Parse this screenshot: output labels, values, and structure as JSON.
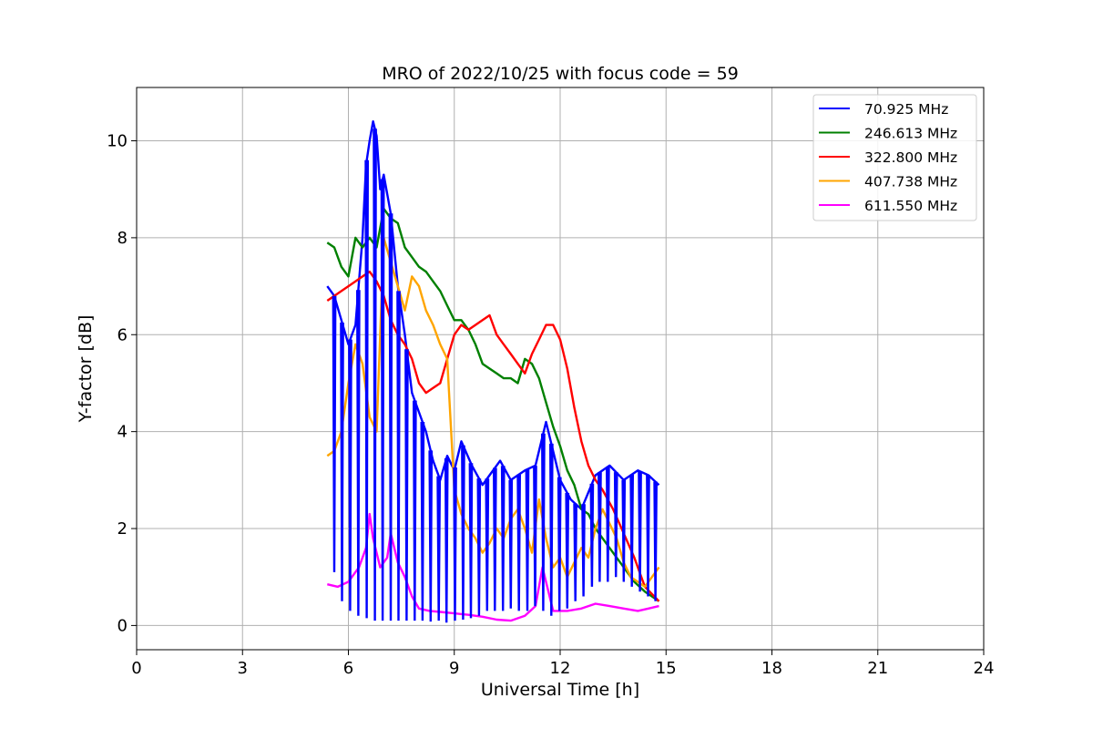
{
  "chart_data": {
    "type": "line",
    "title": "MRO of 2022/10/25 with focus code = 59",
    "xlabel": "Universal Time [h]",
    "ylabel": "Y-factor [dB]",
    "xlim": [
      0,
      24
    ],
    "ylim": [
      -0.5,
      11.1
    ],
    "xticks": [
      0,
      3,
      6,
      9,
      12,
      15,
      18,
      21,
      24
    ],
    "yticks": [
      0,
      2,
      4,
      6,
      8,
      10
    ],
    "grid": true,
    "legend_position": "top-right",
    "series": [
      {
        "name": " 70.925 MHz",
        "color": "#0000ff",
        "x": [
          5.4,
          5.6,
          5.8,
          6.0,
          6.2,
          6.4,
          6.5,
          6.6,
          6.7,
          6.8,
          6.9,
          7.0,
          7.2,
          7.4,
          7.6,
          7.8,
          8.0,
          8.2,
          8.4,
          8.6,
          8.8,
          9.0,
          9.2,
          9.5,
          9.8,
          10.0,
          10.3,
          10.6,
          11.0,
          11.3,
          11.6,
          12.0,
          12.3,
          12.6,
          13.0,
          13.4,
          13.8,
          14.2,
          14.5,
          14.8
        ],
        "y": [
          7.0,
          6.8,
          6.3,
          5.8,
          6.2,
          8.0,
          9.5,
          10.0,
          10.4,
          10.1,
          9.0,
          9.3,
          8.5,
          7.0,
          6.0,
          4.8,
          4.4,
          4.0,
          3.4,
          3.0,
          3.5,
          3.2,
          3.8,
          3.3,
          2.9,
          3.1,
          3.4,
          3.0,
          3.2,
          3.3,
          4.2,
          3.0,
          2.6,
          2.4,
          3.1,
          3.3,
          3.0,
          3.2,
          3.1,
          2.9
        ]
      },
      {
        "name": "246.613 MHz",
        "color": "#008000",
        "x": [
          5.4,
          5.6,
          5.8,
          6.0,
          6.2,
          6.4,
          6.6,
          6.8,
          7.0,
          7.2,
          7.4,
          7.6,
          7.8,
          8.0,
          8.2,
          8.4,
          8.6,
          8.8,
          9.0,
          9.2,
          9.4,
          9.6,
          9.8,
          10.0,
          10.2,
          10.4,
          10.6,
          10.8,
          11.0,
          11.2,
          11.4,
          11.6,
          11.8,
          12.0,
          12.2,
          12.4,
          12.6,
          12.8,
          13.0,
          13.2,
          13.5,
          13.8,
          14.1,
          14.4,
          14.8
        ],
        "y": [
          7.9,
          7.8,
          7.4,
          7.2,
          8.0,
          7.8,
          8.0,
          7.8,
          8.6,
          8.4,
          8.3,
          7.8,
          7.6,
          7.4,
          7.3,
          7.1,
          6.9,
          6.6,
          6.3,
          6.3,
          6.1,
          5.8,
          5.4,
          5.3,
          5.2,
          5.1,
          5.1,
          5.0,
          5.5,
          5.4,
          5.1,
          4.6,
          4.1,
          3.7,
          3.2,
          2.9,
          2.4,
          2.3,
          2.0,
          1.8,
          1.5,
          1.2,
          0.9,
          0.7,
          0.5
        ]
      },
      {
        "name": "322.800 MHz",
        "color": "#ff0000",
        "x": [
          5.4,
          5.6,
          5.8,
          6.0,
          6.2,
          6.4,
          6.6,
          6.8,
          7.0,
          7.2,
          7.4,
          7.6,
          7.8,
          8.0,
          8.2,
          8.4,
          8.6,
          8.8,
          9.0,
          9.2,
          9.4,
          9.6,
          9.8,
          10.0,
          10.2,
          10.4,
          10.6,
          10.8,
          11.0,
          11.2,
          11.4,
          11.6,
          11.8,
          12.0,
          12.2,
          12.4,
          12.6,
          12.8,
          13.0,
          13.2,
          13.5,
          13.8,
          14.1,
          14.4,
          14.8
        ],
        "y": [
          6.7,
          6.8,
          6.9,
          7.0,
          7.1,
          7.2,
          7.3,
          7.1,
          6.8,
          6.3,
          6.0,
          5.8,
          5.5,
          5.0,
          4.8,
          4.9,
          5.0,
          5.5,
          6.0,
          6.2,
          6.1,
          6.2,
          6.3,
          6.4,
          6.0,
          5.8,
          5.6,
          5.4,
          5.2,
          5.6,
          5.9,
          6.2,
          6.2,
          5.9,
          5.3,
          4.5,
          3.8,
          3.3,
          3.0,
          2.8,
          2.4,
          1.9,
          1.4,
          0.8,
          0.5
        ]
      },
      {
        "name": "407.738 MHz",
        "color": "#ffa500",
        "x": [
          5.4,
          5.6,
          5.8,
          6.0,
          6.2,
          6.4,
          6.6,
          6.8,
          7.0,
          7.2,
          7.4,
          7.6,
          7.8,
          8.0,
          8.2,
          8.4,
          8.6,
          8.8,
          9.0,
          9.2,
          9.4,
          9.6,
          9.8,
          10.0,
          10.2,
          10.4,
          10.6,
          10.8,
          11.0,
          11.2,
          11.4,
          11.6,
          11.8,
          12.0,
          12.2,
          12.4,
          12.6,
          12.8,
          13.0,
          13.2,
          13.4,
          13.6,
          13.8,
          14.0,
          14.2,
          14.4,
          14.6,
          14.8
        ],
        "y": [
          3.5,
          3.6,
          4.0,
          5.0,
          5.8,
          5.4,
          4.3,
          4.0,
          8.0,
          7.5,
          7.0,
          6.5,
          7.2,
          7.0,
          6.5,
          6.2,
          5.8,
          5.5,
          2.8,
          2.3,
          2.0,
          1.8,
          1.5,
          1.7,
          2.0,
          1.8,
          2.2,
          2.4,
          2.0,
          1.5,
          2.6,
          1.8,
          1.2,
          1.4,
          1.0,
          1.3,
          1.6,
          1.4,
          2.0,
          2.4,
          2.1,
          1.8,
          1.3,
          1.0,
          0.9,
          0.8,
          1.0,
          1.2
        ]
      },
      {
        "name": "611.550 MHz",
        "color": "#ff00ff",
        "x": [
          5.4,
          5.7,
          6.0,
          6.3,
          6.5,
          6.6,
          6.7,
          6.9,
          7.1,
          7.2,
          7.4,
          7.6,
          7.8,
          8.0,
          8.3,
          8.6,
          9.0,
          9.4,
          9.8,
          10.2,
          10.6,
          11.0,
          11.3,
          11.5,
          11.8,
          12.2,
          12.6,
          13.0,
          13.4,
          13.8,
          14.2,
          14.5,
          14.8
        ],
        "y": [
          0.85,
          0.8,
          0.9,
          1.2,
          1.6,
          2.3,
          1.8,
          1.2,
          1.4,
          1.9,
          1.3,
          1.0,
          0.6,
          0.35,
          0.3,
          0.28,
          0.25,
          0.22,
          0.18,
          0.12,
          0.1,
          0.2,
          0.4,
          1.2,
          0.3,
          0.3,
          0.35,
          0.45,
          0.4,
          0.35,
          0.3,
          0.35,
          0.4
        ]
      }
    ],
    "spike_series": [
      {
        "name": " 70.925 MHz",
        "color": "#0000ff",
        "x": [
          5.6,
          5.82,
          6.05,
          6.28,
          6.52,
          6.75,
          6.97,
          7.2,
          7.42,
          7.65,
          7.88,
          8.1,
          8.33,
          8.56,
          8.78,
          9.02,
          9.25,
          9.47,
          9.7,
          9.93,
          10.15,
          10.38,
          10.6,
          10.83,
          11.07,
          11.29,
          11.52,
          11.75,
          11.98,
          12.2,
          12.43,
          12.66,
          12.9,
          13.12,
          13.35,
          13.58,
          13.8,
          14.03,
          14.26,
          14.49,
          14.7
        ],
        "y": [
          1.1,
          0.5,
          0.3,
          0.2,
          0.15,
          0.1,
          0.1,
          0.1,
          0.1,
          0.1,
          0.1,
          0.1,
          0.08,
          0.1,
          0.06,
          0.1,
          0.12,
          0.15,
          0.2,
          0.3,
          0.3,
          0.3,
          0.35,
          0.3,
          0.3,
          0.4,
          0.3,
          0.2,
          0.3,
          0.35,
          0.5,
          0.6,
          0.8,
          0.9,
          0.9,
          1.0,
          0.9,
          0.8,
          0.7,
          0.6,
          0.5
        ]
      }
    ]
  }
}
